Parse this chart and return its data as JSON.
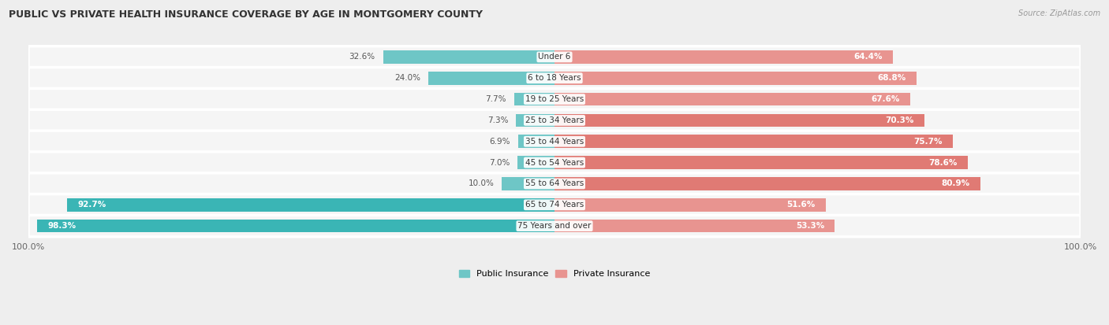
{
  "title": "Public vs Private Health Insurance Coverage by Age in Montgomery County",
  "source": "Source: ZipAtlas.com",
  "categories": [
    "Under 6",
    "6 to 18 Years",
    "19 to 25 Years",
    "25 to 34 Years",
    "35 to 44 Years",
    "45 to 54 Years",
    "55 to 64 Years",
    "65 to 74 Years",
    "75 Years and over"
  ],
  "public_values": [
    32.6,
    24.0,
    7.7,
    7.3,
    6.9,
    7.0,
    10.0,
    92.7,
    98.3
  ],
  "private_values": [
    64.4,
    68.8,
    67.6,
    70.3,
    75.7,
    78.6,
    80.9,
    51.6,
    53.3
  ],
  "public_color_normal": "#6ec6c6",
  "public_color_large": "#3ab5b5",
  "private_color_normal": "#e89490",
  "private_color_large": "#e07a74",
  "bg_color": "#eeeeee",
  "row_bg_light": "#f5f5f5",
  "row_bg_dark": "#ebebeb",
  "xlim": 100,
  "bar_height": 0.62,
  "figsize": [
    14.06,
    4.13
  ],
  "dpi": 100,
  "title_fontsize": 9,
  "label_fontsize": 7.5,
  "axis_fontsize": 8
}
